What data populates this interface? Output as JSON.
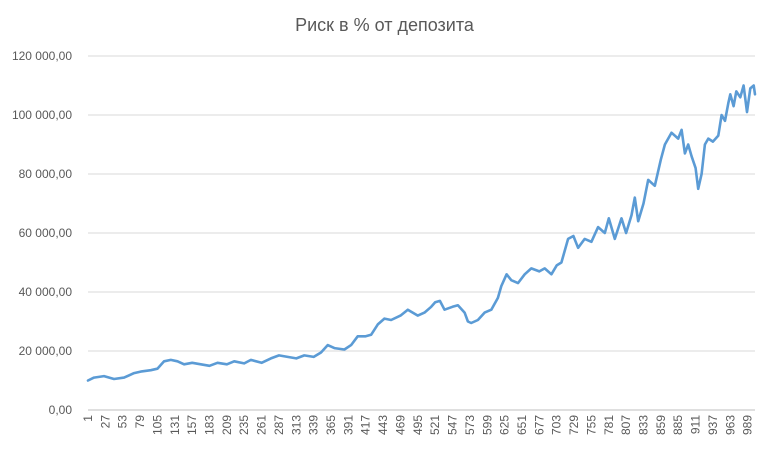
{
  "chart_data": {
    "type": "line",
    "title": "Риск в % от депозита",
    "xlabel": "",
    "ylabel": "",
    "ylim": [
      0,
      120000
    ],
    "y_ticks": [
      0,
      20000,
      40000,
      60000,
      80000,
      100000,
      120000
    ],
    "y_tick_labels": [
      "0,00",
      "20 000,00",
      "40 000,00",
      "60 000,00",
      "80 000,00",
      "100 000,00",
      "120 000,00"
    ],
    "x_range": [
      1,
      1000
    ],
    "x_ticks": [
      1,
      27,
      53,
      79,
      105,
      131,
      157,
      183,
      209,
      235,
      261,
      287,
      313,
      339,
      365,
      391,
      417,
      443,
      469,
      495,
      521,
      547,
      573,
      599,
      625,
      651,
      677,
      703,
      729,
      755,
      781,
      807,
      833,
      859,
      885,
      911,
      937,
      963,
      989
    ],
    "grid": true,
    "legend": "none",
    "color": "#5b9bd5",
    "series": [
      {
        "x": [
          1,
          10,
          25,
          40,
          55,
          70,
          80,
          95,
          105,
          115,
          125,
          135,
          145,
          157,
          170,
          183,
          195,
          209,
          220,
          235,
          245,
          261,
          275,
          287,
          300,
          313,
          325,
          339,
          350,
          360,
          370,
          385,
          395,
          405,
          417,
          425,
          435,
          445,
          455,
          469,
          480,
          495,
          505,
          515,
          521,
          528,
          535,
          547,
          555,
          565,
          570,
          575,
          585,
          595,
          605,
          615,
          620,
          628,
          635,
          645,
          655,
          665,
          677,
          685,
          695,
          703,
          710,
          720,
          728,
          735,
          745,
          755,
          765,
          775,
          781,
          790,
          800,
          807,
          815,
          820,
          825,
          833,
          840,
          850,
          859,
          865,
          875,
          885,
          890,
          895,
          900,
          905,
          911,
          915,
          920,
          925,
          930,
          937,
          945,
          950,
          955,
          960,
          963,
          968,
          972,
          978,
          983,
          988,
          993,
          998,
          1000
        ],
        "y": [
          10000,
          11000,
          11500,
          10500,
          11000,
          12500,
          13000,
          13500,
          14000,
          16500,
          17000,
          16500,
          15500,
          16000,
          15500,
          15000,
          16000,
          15500,
          16500,
          15800,
          17000,
          16000,
          17500,
          18500,
          18000,
          17500,
          18500,
          18000,
          19500,
          22000,
          21000,
          20500,
          22000,
          25000,
          25000,
          25500,
          29000,
          31000,
          30500,
          32000,
          34000,
          32000,
          33000,
          35000,
          36500,
          37000,
          34000,
          35000,
          35500,
          33000,
          30000,
          29500,
          30500,
          33000,
          34000,
          38000,
          42000,
          46000,
          44000,
          43000,
          46000,
          48000,
          47000,
          48000,
          46000,
          49000,
          50000,
          58000,
          59000,
          55000,
          58000,
          57000,
          62000,
          60000,
          65000,
          58000,
          65000,
          60000,
          66000,
          72000,
          64000,
          70000,
          78000,
          76000,
          85000,
          90000,
          94000,
          92000,
          95000,
          87000,
          90000,
          86000,
          82000,
          75000,
          80000,
          90000,
          92000,
          91000,
          93000,
          100000,
          98000,
          104000,
          107000,
          103000,
          108000,
          106000,
          110000,
          101000,
          109000,
          110000,
          107000
        ]
      }
    ]
  }
}
